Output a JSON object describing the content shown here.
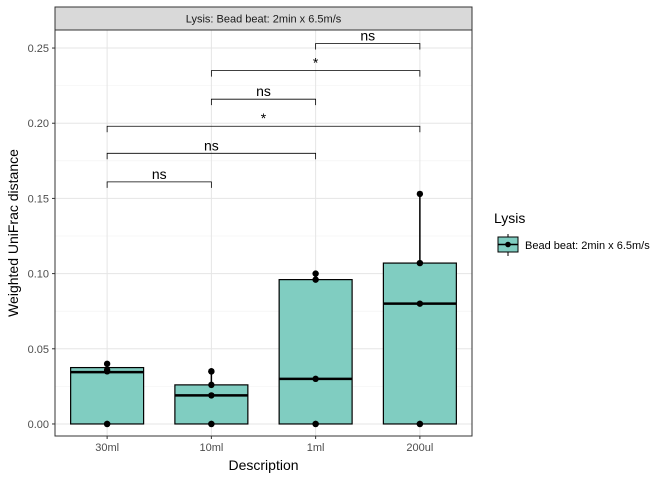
{
  "chart_data": {
    "type": "box",
    "facet_label": "Lysis: Bead beat: 2min x 6.5m/s",
    "xlabel": "Description",
    "ylabel": "Weighted UniFrac distance",
    "categories": [
      "30ml",
      "10ml",
      "1ml",
      "200ul"
    ],
    "ylim": [
      -0.008,
      0.262
    ],
    "yticks": [
      0.0,
      0.05,
      0.1,
      0.15,
      0.2,
      0.25
    ],
    "ytick_labels": [
      "0.00",
      "0.05",
      "0.10",
      "0.15",
      "0.20",
      "0.25"
    ],
    "grid": true,
    "fill_color": "#80cdc1",
    "boxes": [
      {
        "category": "30ml",
        "min": 0.0,
        "q1": 0.0,
        "median": 0.0345,
        "q3": 0.0375,
        "max": 0.04,
        "points": [
          0.0,
          0.0,
          0.035,
          0.036,
          0.04
        ]
      },
      {
        "category": "10ml",
        "min": 0.0,
        "q1": 0.0,
        "median": 0.019,
        "q3": 0.026,
        "max": 0.035,
        "points": [
          0.0,
          0.0,
          0.019,
          0.026,
          0.035,
          0.035
        ]
      },
      {
        "category": "1ml",
        "min": 0.0,
        "q1": 0.0,
        "median": 0.03,
        "q3": 0.096,
        "max": 0.1,
        "points": [
          0.0,
          0.0,
          0.03,
          0.096,
          0.1
        ]
      },
      {
        "category": "200ul",
        "min": 0.0,
        "q1": 0.0,
        "median": 0.08,
        "q3": 0.107,
        "max": 0.153,
        "points": [
          0.0,
          0.0,
          0.08,
          0.107,
          0.153
        ]
      }
    ],
    "comparisons": [
      {
        "from": "30ml",
        "to": "10ml",
        "y": 0.161,
        "label": "ns"
      },
      {
        "from": "30ml",
        "to": "1ml",
        "y": 0.18,
        "label": "ns"
      },
      {
        "from": "30ml",
        "to": "200ul",
        "y": 0.198,
        "label": "*"
      },
      {
        "from": "10ml",
        "to": "1ml",
        "y": 0.216,
        "label": "ns"
      },
      {
        "from": "10ml",
        "to": "200ul",
        "y": 0.235,
        "label": "*"
      },
      {
        "from": "1ml",
        "to": "200ul",
        "y": 0.253,
        "label": "ns"
      }
    ],
    "legend": {
      "title": "Lysis",
      "entries": [
        {
          "label": "Bead beat: 2min x 6.5m/s",
          "color": "#80cdc1"
        }
      ],
      "placement": "right"
    }
  }
}
